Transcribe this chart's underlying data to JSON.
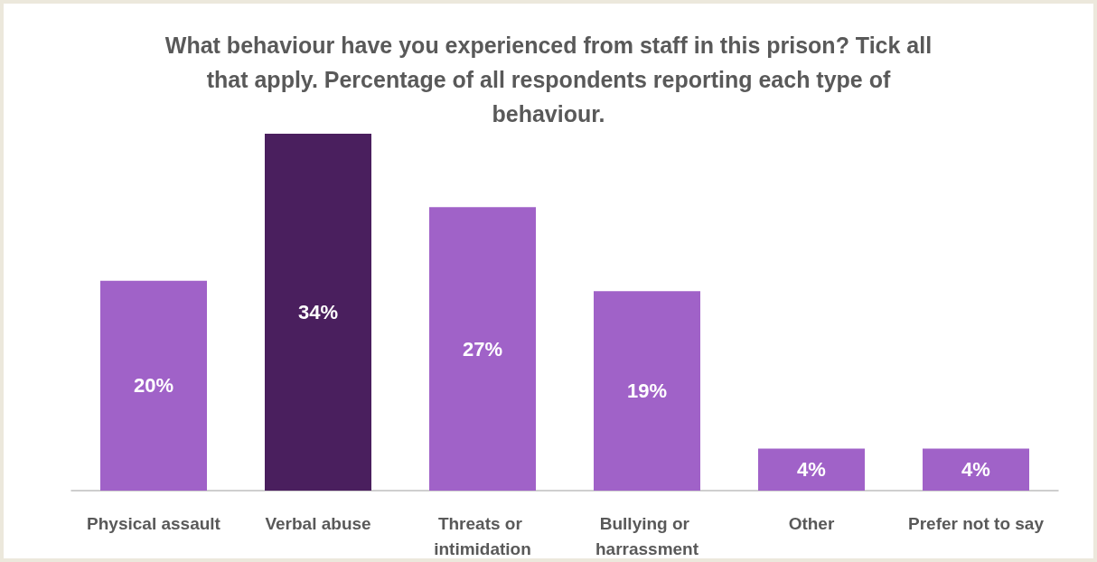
{
  "chart_data": {
    "type": "bar",
    "title": "What behaviour have you experienced from staff in this prison? Tick all that apply. Percentage of all respondents reporting each type of behaviour.",
    "categories": [
      "Physical assault",
      "Verbal abuse",
      "Threats or intimidation",
      "Bullying or harrassment",
      "Other",
      "Prefer not to say"
    ],
    "values": [
      20,
      34,
      27,
      19,
      4,
      4
    ],
    "colors": [
      "#a062c8",
      "#4a1f5e",
      "#a062c8",
      "#a062c8",
      "#a062c8",
      "#a062c8"
    ],
    "value_labels": [
      "20%",
      "34%",
      "27%",
      "19%",
      "4%",
      "4%"
    ],
    "grid": false
  }
}
